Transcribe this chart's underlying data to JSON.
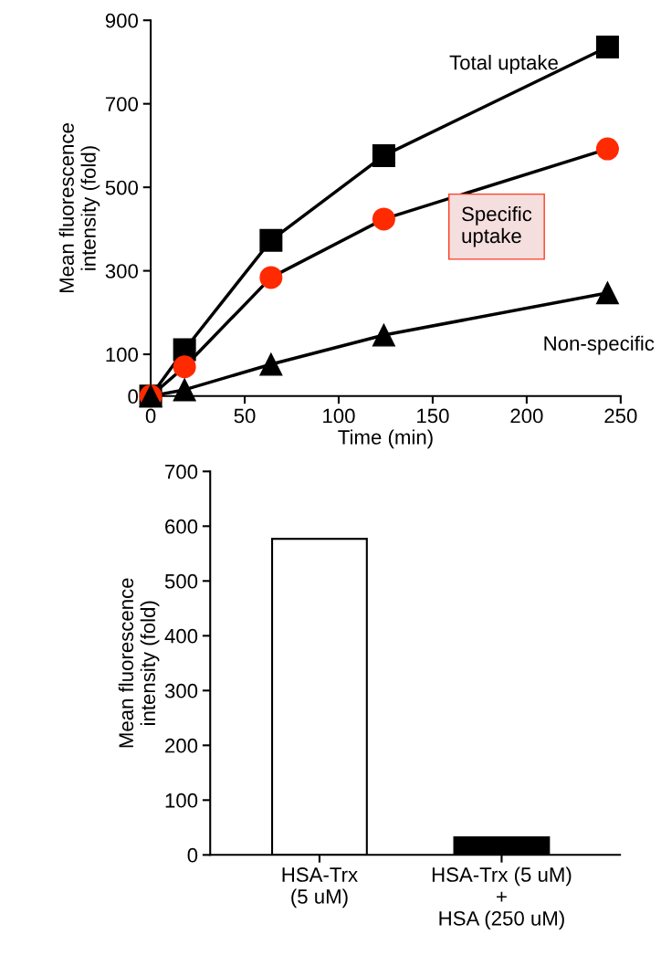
{
  "chart_data": [
    {
      "type": "line",
      "xlabel": "Time (min)",
      "ylabel": "Mean fluorescence\nintensity (fold)",
      "xlim": [
        0,
        250
      ],
      "xticks": [
        0,
        50,
        100,
        150,
        200,
        250
      ],
      "ylim": [
        0,
        900
      ],
      "yticks": [
        0,
        100,
        300,
        500,
        700,
        900
      ],
      "grid": false,
      "legend": false,
      "series": [
        {
          "name": "Total uptake",
          "color": "#000000",
          "marker": "square",
          "x": [
            0,
            18,
            64,
            124,
            243
          ],
          "values": [
            0,
            111,
            373,
            576,
            836
          ]
        },
        {
          "name": "Specific\nuptake",
          "color": "#ff2a00",
          "marker": "circle",
          "x": [
            0,
            18,
            64,
            124,
            243
          ],
          "values": [
            0,
            70,
            284,
            424,
            592
          ]
        },
        {
          "name": "Non-specific",
          "color": "#000000",
          "marker": "triangle",
          "x": [
            0,
            18,
            64,
            124,
            243
          ],
          "values": [
            0,
            15,
            76,
            146,
            247
          ]
        }
      ]
    },
    {
      "type": "bar",
      "ylabel": "Mean fluorescence\nintensity (fold)",
      "categories": [
        "HSA-Trx\n(5 uM)",
        "HSA-Trx (5 uM)\n+\nHSA (250 uM)"
      ],
      "values": [
        577,
        32
      ],
      "colors": [
        "#ffffff",
        "#000000"
      ],
      "ylim": [
        0,
        700
      ],
      "yticks": [
        0,
        100,
        200,
        300,
        400,
        500,
        600,
        700
      ],
      "grid": false,
      "legend": false
    }
  ]
}
